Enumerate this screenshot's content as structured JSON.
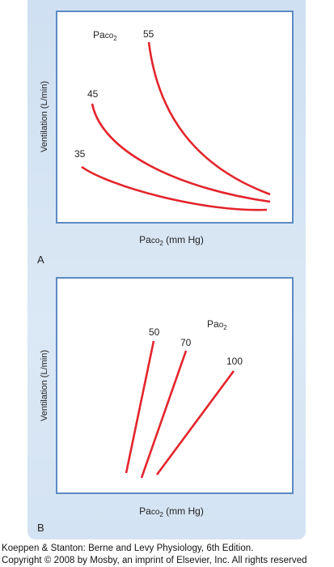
{
  "panels": [
    {
      "letter": "A",
      "y_label": "Ventilation (L/min)",
      "x_label_main": "Pa",
      "x_label_sub": "co",
      "x_label_subscript": "2",
      "x_label_unit": " (mm Hg)",
      "family_label_main": "Pa",
      "family_label_sub": "co",
      "family_label_subscript": "2",
      "curves": [
        {
          "label": "55"
        },
        {
          "label": "45"
        },
        {
          "label": "35"
        }
      ]
    },
    {
      "letter": "B",
      "y_label": "Ventilation (L/min)",
      "x_label_main": "Pa",
      "x_label_sub": "co",
      "x_label_subscript": "2",
      "x_label_unit": " (mm Hg)",
      "family_label_main": "Pa",
      "family_label_sub": "o",
      "family_label_subscript": "2",
      "curves": [
        {
          "label": "50"
        },
        {
          "label": "70"
        },
        {
          "label": "100"
        }
      ]
    }
  ],
  "colors": {
    "curve": "#e3242b",
    "frame": "#5b8ac4",
    "panel_background": "#d6e5f4"
  },
  "credit": {
    "line1": "Koeppen & Stanton: Berne and Levy Physiology, 6th Edition.",
    "line2": "Copyright © 2008 by Mosby, an imprint of Elsevier, Inc. All rights reserved"
  }
}
